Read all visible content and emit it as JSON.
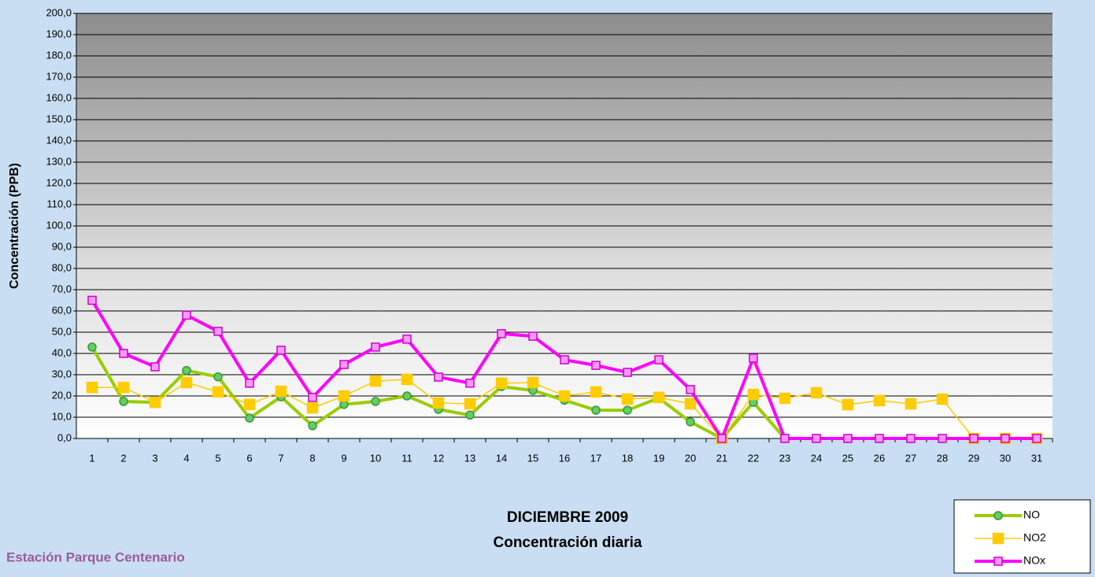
{
  "chart_data": {
    "type": "line",
    "title": "DICIEMBRE 2009",
    "subtitle": "Concentración diaria",
    "y_label": "Concentración  (PPB)",
    "annotation": "Estación Parque Centenario",
    "categories": [
      "1",
      "2",
      "3",
      "4",
      "5",
      "6",
      "7",
      "8",
      "9",
      "10",
      "11",
      "12",
      "13",
      "14",
      "15",
      "16",
      "17",
      "18",
      "19",
      "20",
      "21",
      "22",
      "23",
      "24",
      "25",
      "26",
      "27",
      "28",
      "29",
      "30",
      "31"
    ],
    "series": [
      {
        "name": "NO",
        "color": "#99cc00",
        "marker": "circle",
        "values": [
          43,
          17.4,
          17,
          32,
          29,
          9.6,
          19.6,
          6,
          16,
          17.4,
          20,
          13.7,
          11,
          24.4,
          22.6,
          18,
          13.3,
          13.3,
          19,
          7.8,
          0,
          17,
          0,
          0,
          0,
          0,
          0,
          0,
          0,
          0,
          0
        ]
      },
      {
        "name": "NO2",
        "color": "#ffcc00",
        "marker": "square",
        "values": [
          24,
          24,
          17,
          26.3,
          21.9,
          16,
          22.2,
          14.4,
          20,
          27,
          27.8,
          16.7,
          16.3,
          26,
          26.3,
          20,
          21.9,
          18.5,
          19.3,
          16.3,
          0,
          20.7,
          18.9,
          21.5,
          15.9,
          17.8,
          16.3,
          18.5,
          0,
          0,
          0
        ]
      },
      {
        "name": "NOx",
        "color": "#ff00ff",
        "marker": "square",
        "values": [
          65,
          40,
          33.7,
          58,
          50.4,
          26,
          41.5,
          19.3,
          34.8,
          43,
          46.7,
          28.9,
          26,
          49.3,
          48.1,
          37,
          34.4,
          31.1,
          37,
          23,
          0,
          37.8,
          0,
          0,
          0,
          0,
          0,
          0,
          0,
          0,
          0
        ]
      }
    ],
    "ylim": [
      0,
      200
    ],
    "yticks": [
      {
        "value": 0,
        "label": "0,0"
      },
      {
        "value": 10,
        "label": "10,0"
      },
      {
        "value": 20,
        "label": "20,0"
      },
      {
        "value": 30,
        "label": "30,0"
      },
      {
        "value": 40,
        "label": "40,0"
      },
      {
        "value": 50,
        "label": "50,0"
      },
      {
        "value": 60,
        "label": "60,0"
      },
      {
        "value": 70,
        "label": "70,0"
      },
      {
        "value": 80,
        "label": "80,0"
      },
      {
        "value": 90,
        "label": "90,0"
      },
      {
        "value": 100,
        "label": "100,0"
      },
      {
        "value": 110,
        "label": "110,0"
      },
      {
        "value": 120,
        "label": "120,0"
      },
      {
        "value": 130,
        "label": "130,0"
      },
      {
        "value": 140,
        "label": "140,0"
      },
      {
        "value": 150,
        "label": "150,0"
      },
      {
        "value": 160,
        "label": "160,0"
      },
      {
        "value": 170,
        "label": "170,0"
      },
      {
        "value": 180,
        "label": "180,0"
      },
      {
        "value": 190,
        "label": "190,0"
      },
      {
        "value": 200,
        "label": "200,0"
      }
    ],
    "grid": true,
    "legend": "bottom-right"
  }
}
